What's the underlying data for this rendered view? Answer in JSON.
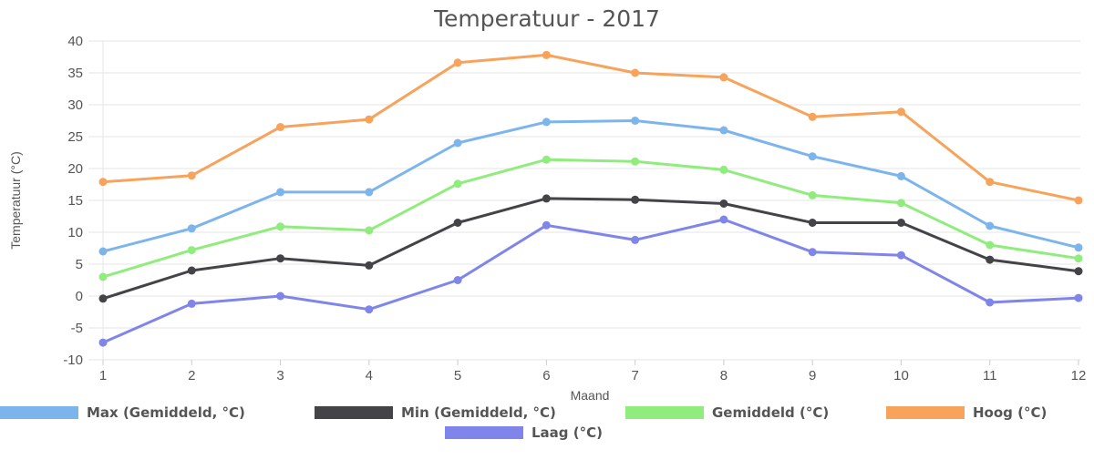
{
  "chart_data": {
    "type": "line",
    "title": "Temperatuur - 2017",
    "xlabel": "Maand",
    "ylabel": "Temperatuur (°C)",
    "x": [
      1,
      2,
      3,
      4,
      5,
      6,
      7,
      8,
      9,
      10,
      11,
      12
    ],
    "ylim": [
      -10,
      40
    ],
    "yticks": [
      -10,
      -5,
      0,
      5,
      10,
      15,
      20,
      25,
      30,
      35,
      40
    ],
    "grid": true,
    "legend_position": "bottom",
    "series": [
      {
        "name": "Max (Gemiddeld, °C)",
        "color": "#7cb5ec",
        "values": [
          7.0,
          10.6,
          16.3,
          16.3,
          24.0,
          27.3,
          27.5,
          26.0,
          21.9,
          18.8,
          11.0,
          7.6
        ]
      },
      {
        "name": "Min (Gemiddeld, °C)",
        "color": "#434348",
        "values": [
          -0.4,
          4.0,
          5.9,
          4.8,
          11.5,
          15.3,
          15.1,
          14.5,
          11.5,
          11.5,
          5.7,
          3.9
        ]
      },
      {
        "name": "Gemiddeld (°C)",
        "color": "#90ed7d",
        "values": [
          3.0,
          7.2,
          10.9,
          10.3,
          17.6,
          21.4,
          21.1,
          19.8,
          15.8,
          14.6,
          8.0,
          5.9
        ]
      },
      {
        "name": "Hoog (°C)",
        "color": "#f7a35c",
        "values": [
          17.9,
          18.9,
          26.5,
          27.7,
          36.6,
          37.8,
          35.0,
          34.3,
          28.1,
          28.9,
          17.9,
          15.0
        ]
      },
      {
        "name": "Laag (°C)",
        "color": "#8085e9",
        "values": [
          -7.3,
          -1.2,
          0.0,
          -2.1,
          2.5,
          11.1,
          8.8,
          12.0,
          6.9,
          6.4,
          -1.0,
          -0.3
        ]
      }
    ]
  }
}
